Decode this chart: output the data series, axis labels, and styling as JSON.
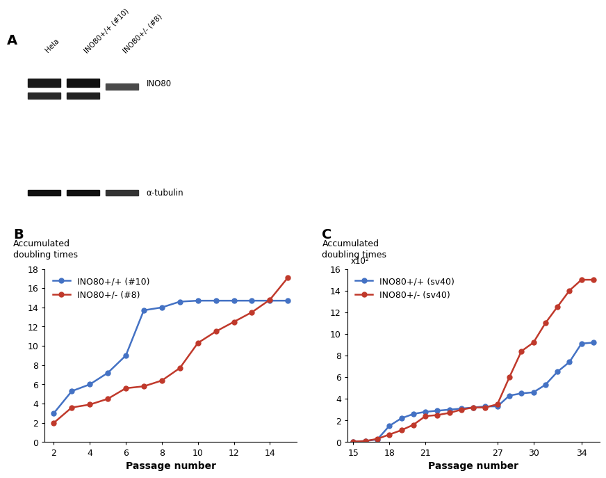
{
  "panel_A": {
    "label": "A",
    "ino80_label": "INO80",
    "tubulin_label": "α-tubulin",
    "col_labels": [
      "Hela",
      "INO80+/+ (#10)",
      "INO80+/- (#8)"
    ]
  },
  "panel_B": {
    "label": "B",
    "title": "Accumulated\ndoubling times",
    "xlabel": "Passage number",
    "ylim": [
      0,
      18
    ],
    "yticks": [
      0,
      2,
      4,
      6,
      8,
      10,
      12,
      14,
      16,
      18
    ],
    "xticks": [
      2,
      4,
      6,
      8,
      10,
      12,
      14
    ],
    "blue_label": "INO80+/+ (#10)",
    "red_label": "INO80+/- (#8)",
    "blue_x": [
      2,
      3,
      4,
      5,
      6,
      7,
      8,
      9,
      10,
      11,
      12,
      13,
      14,
      15
    ],
    "blue_y": [
      3.0,
      5.3,
      6.0,
      7.2,
      9.0,
      13.7,
      14.0,
      14.6,
      14.7,
      14.7,
      14.7,
      14.7,
      14.7,
      14.7
    ],
    "red_x": [
      2,
      3,
      4,
      5,
      6,
      7,
      8,
      9,
      10,
      11,
      12,
      13,
      14,
      15
    ],
    "red_y": [
      2.0,
      3.6,
      3.9,
      4.5,
      5.6,
      5.8,
      6.4,
      7.7,
      10.3,
      11.5,
      12.5,
      13.5,
      14.8,
      17.1
    ],
    "blue_color": "#4472C4",
    "red_color": "#C0392B",
    "markersize": 5,
    "linewidth": 1.8
  },
  "panel_C": {
    "label": "C",
    "title": "Accumulated\ndoubling times",
    "xlabel": "Passage number",
    "scale_label": "x10²",
    "ylim": [
      0,
      16
    ],
    "yticks": [
      0,
      2,
      4,
      6,
      8,
      10,
      12,
      14,
      16
    ],
    "xticks": [
      15,
      18,
      21,
      27,
      30,
      34
    ],
    "blue_label": "INO80+/+ (sv40)",
    "red_label": "INO80+/- (sv40)",
    "blue_x": [
      15,
      16,
      17,
      18,
      19,
      20,
      21,
      22,
      23,
      24,
      25,
      26,
      27,
      28,
      29,
      30,
      31,
      32,
      33,
      34,
      35
    ],
    "blue_y": [
      0.05,
      0.1,
      0.25,
      1.5,
      2.2,
      2.6,
      2.8,
      2.9,
      3.0,
      3.1,
      3.2,
      3.3,
      3.3,
      4.3,
      4.5,
      4.6,
      5.3,
      6.5,
      7.4,
      9.1,
      9.2
    ],
    "red_x": [
      15,
      16,
      17,
      18,
      19,
      20,
      21,
      22,
      23,
      24,
      25,
      26,
      27,
      28,
      29,
      30,
      31,
      32,
      33,
      34,
      35
    ],
    "red_y": [
      0.05,
      0.1,
      0.3,
      0.7,
      1.1,
      1.6,
      2.4,
      2.5,
      2.7,
      3.0,
      3.2,
      3.2,
      3.5,
      6.0,
      8.4,
      9.2,
      11.0,
      12.5,
      14.0,
      15.0,
      15.0
    ],
    "blue_color": "#4472C4",
    "red_color": "#C0392B",
    "markersize": 5,
    "linewidth": 1.8
  },
  "wb": {
    "bg_color": "#8a8a8a",
    "band_colors": {
      "hela_ino80_top": "#1a1a1a",
      "hela_ino80_bot": "#2a2a2a",
      "wt_ino80_top": "#111111",
      "wt_ino80_bot": "#222222",
      "het_ino80": "#4a4a4a",
      "hela_tub": "#111111",
      "wt_tub": "#111111",
      "het_tub": "#333333"
    }
  },
  "background_color": "#FFFFFF",
  "font_color": "#000000",
  "panel_label_fontsize": 14,
  "axis_title_fontsize": 9,
  "tick_fontsize": 9,
  "legend_fontsize": 9
}
